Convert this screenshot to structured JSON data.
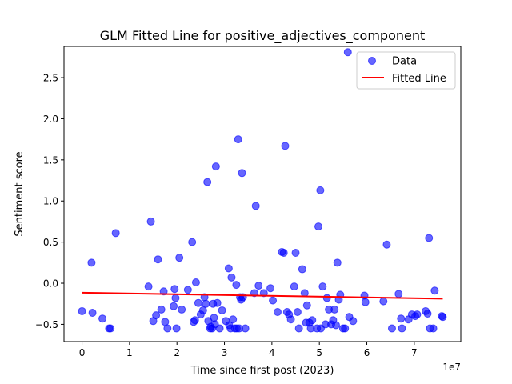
{
  "chart_data": {
    "type": "scatter",
    "title": "GLM Fitted Line for positive_adjectives_component",
    "xlabel": "Time since first post (2023)",
    "ylabel": "Sentiment score",
    "x_offset_label": "1e7",
    "xlim": [
      -3800000,
      79800000
    ],
    "ylim": [
      -0.71,
      2.88
    ],
    "xticks": [
      0,
      10000000,
      20000000,
      30000000,
      40000000,
      50000000,
      60000000,
      70000000
    ],
    "xtick_labels": [
      "0",
      "1",
      "2",
      "3",
      "4",
      "5",
      "6",
      "7"
    ],
    "yticks": [
      -0.5,
      0.0,
      0.5,
      1.0,
      1.5,
      2.0,
      2.5
    ],
    "ytick_labels": [
      "−0.5",
      "0.0",
      "0.5",
      "1.0",
      "1.5",
      "2.0",
      "2.5"
    ],
    "legend": {
      "position": "top-right",
      "entries": [
        "Data",
        "Fitted Line"
      ]
    },
    "colors": {
      "points": "#0000ff",
      "fit": "#ff0000"
    },
    "fitted_line": {
      "x": [
        0,
        76000000
      ],
      "y": [
        -0.115,
        -0.188
      ]
    },
    "series": [
      {
        "name": "Data",
        "points": [
          [
            0,
            -0.34
          ],
          [
            2000000,
            0.25
          ],
          [
            2200000,
            -0.36
          ],
          [
            4300000,
            -0.43
          ],
          [
            5700000,
            -0.55
          ],
          [
            6000000,
            -0.55
          ],
          [
            7100000,
            0.61
          ],
          [
            14000000,
            -0.04
          ],
          [
            14500000,
            0.75
          ],
          [
            15000000,
            -0.46
          ],
          [
            15600000,
            -0.39
          ],
          [
            16000000,
            0.29
          ],
          [
            16700000,
            -0.32
          ],
          [
            17200000,
            -0.1
          ],
          [
            17500000,
            -0.47
          ],
          [
            18000000,
            -0.55
          ],
          [
            19300000,
            -0.28
          ],
          [
            19500000,
            -0.07
          ],
          [
            19700000,
            -0.18
          ],
          [
            19900000,
            -0.55
          ],
          [
            20500000,
            0.31
          ],
          [
            21000000,
            -0.32
          ],
          [
            22300000,
            -0.08
          ],
          [
            23200000,
            0.5
          ],
          [
            23500000,
            -0.47
          ],
          [
            23800000,
            -0.45
          ],
          [
            24000000,
            0.01
          ],
          [
            24500000,
            -0.24
          ],
          [
            25000000,
            -0.38
          ],
          [
            25500000,
            -0.33
          ],
          [
            25800000,
            -0.17
          ],
          [
            26100000,
            -0.25
          ],
          [
            26400000,
            1.23
          ],
          [
            26600000,
            -0.46
          ],
          [
            27000000,
            -0.55
          ],
          [
            27100000,
            -0.53
          ],
          [
            27400000,
            -0.55
          ],
          [
            27600000,
            -0.25
          ],
          [
            27800000,
            -0.42
          ],
          [
            28000000,
            -0.5
          ],
          [
            28200000,
            1.42
          ],
          [
            28500000,
            -0.24
          ],
          [
            29000000,
            -0.55
          ],
          [
            29500000,
            -0.33
          ],
          [
            30300000,
            -0.46
          ],
          [
            30900000,
            0.18
          ],
          [
            31000000,
            -0.51
          ],
          [
            31300000,
            -0.55
          ],
          [
            31500000,
            0.07
          ],
          [
            31800000,
            -0.44
          ],
          [
            32200000,
            -0.55
          ],
          [
            32500000,
            -0.02
          ],
          [
            32600000,
            -0.55
          ],
          [
            32900000,
            1.75
          ],
          [
            33100000,
            -0.55
          ],
          [
            33300000,
            -0.17
          ],
          [
            33500000,
            -0.2
          ],
          [
            33700000,
            1.34
          ],
          [
            33900000,
            -0.17
          ],
          [
            34400000,
            -0.55
          ],
          [
            36300000,
            -0.12
          ],
          [
            36600000,
            0.94
          ],
          [
            37200000,
            -0.03
          ],
          [
            38300000,
            -0.12
          ],
          [
            39700000,
            -0.06
          ],
          [
            40200000,
            -0.21
          ],
          [
            41200000,
            -0.35
          ],
          [
            42100000,
            0.38
          ],
          [
            42500000,
            0.37
          ],
          [
            42800000,
            1.67
          ],
          [
            43200000,
            -0.35
          ],
          [
            43600000,
            -0.38
          ],
          [
            44000000,
            -0.44
          ],
          [
            44700000,
            -0.04
          ],
          [
            45000000,
            0.37
          ],
          [
            45400000,
            -0.35
          ],
          [
            45700000,
            -0.55
          ],
          [
            46400000,
            0.17
          ],
          [
            46900000,
            -0.12
          ],
          [
            47200000,
            -0.48
          ],
          [
            47400000,
            -0.27
          ],
          [
            47900000,
            -0.48
          ],
          [
            48200000,
            -0.55
          ],
          [
            48500000,
            -0.45
          ],
          [
            49500000,
            -0.55
          ],
          [
            49800000,
            0.69
          ],
          [
            50200000,
            1.13
          ],
          [
            50300000,
            -0.55
          ],
          [
            50700000,
            -0.04
          ],
          [
            51300000,
            -0.5
          ],
          [
            51600000,
            -0.18
          ],
          [
            52000000,
            -0.32
          ],
          [
            52500000,
            -0.5
          ],
          [
            52900000,
            -0.45
          ],
          [
            53200000,
            -0.32
          ],
          [
            53500000,
            -0.51
          ],
          [
            53800000,
            0.25
          ],
          [
            54100000,
            -0.2
          ],
          [
            54400000,
            -0.14
          ],
          [
            55000000,
            -0.55
          ],
          [
            55400000,
            -0.55
          ],
          [
            56000000,
            2.81
          ],
          [
            56300000,
            -0.41
          ],
          [
            57100000,
            -0.46
          ],
          [
            59500000,
            -0.15
          ],
          [
            59700000,
            -0.23
          ],
          [
            63500000,
            -0.22
          ],
          [
            64200000,
            0.47
          ],
          [
            65300000,
            -0.55
          ],
          [
            66700000,
            -0.13
          ],
          [
            67200000,
            -0.43
          ],
          [
            67400000,
            -0.55
          ],
          [
            68800000,
            -0.44
          ],
          [
            69500000,
            -0.38
          ],
          [
            70200000,
            -0.4
          ],
          [
            70600000,
            -0.38
          ],
          [
            72400000,
            -0.34
          ],
          [
            72800000,
            -0.37
          ],
          [
            73100000,
            0.55
          ],
          [
            73300000,
            -0.55
          ],
          [
            74000000,
            -0.55
          ],
          [
            74300000,
            -0.09
          ],
          [
            75800000,
            -0.4
          ],
          [
            76000000,
            -0.41
          ]
        ]
      }
    ]
  }
}
